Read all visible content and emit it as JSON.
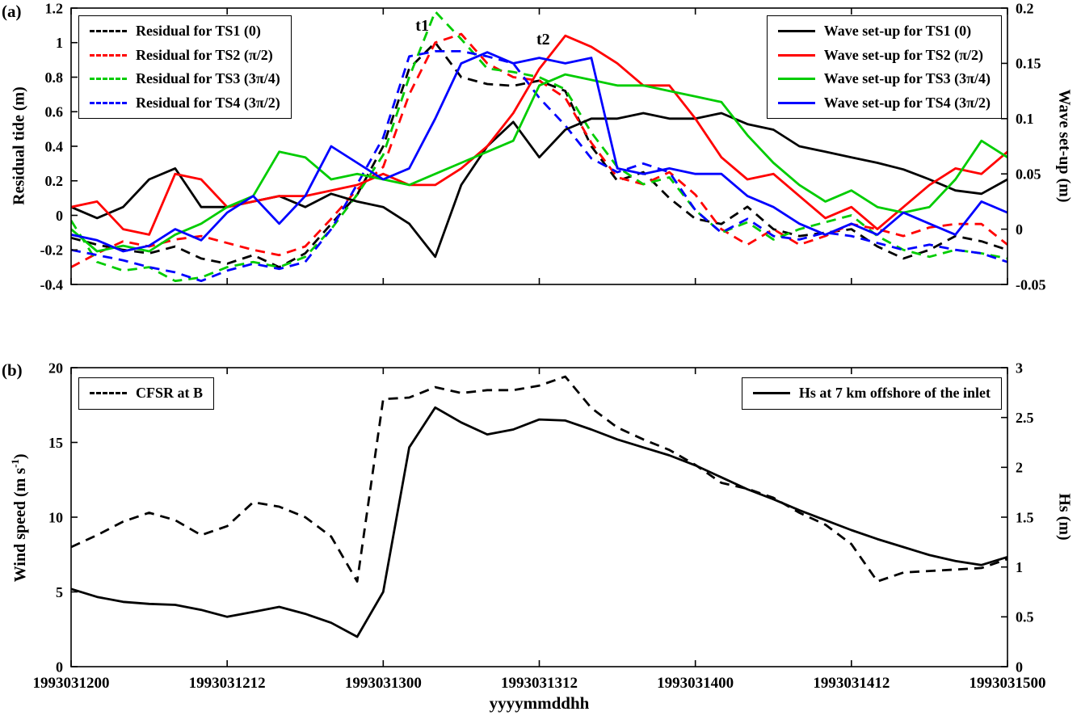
{
  "figure": {
    "panel_a_label": "(a)",
    "panel_b_label": "(b)",
    "xlabel": "yyyymmddhh"
  },
  "display": {
    "wind_label_pre": "Wind speed (m s",
    "wind_label_sup": "-1",
    "wind_label_post": ")"
  },
  "colors": {
    "black": "#000000",
    "red": "#ff0000",
    "green": "#00cc00",
    "blue": "#0000ff"
  },
  "chart_data": [
    {
      "type": "line",
      "panel": "a",
      "ylabel_left": "Residual tide (m)",
      "ylabel_right": "Wave set-up (m)",
      "ylim_left": [
        -0.4,
        1.2
      ],
      "ylim_right": [
        -0.05,
        0.2
      ],
      "yticks_left": {
        "values": [
          1.2,
          1,
          0.8,
          0.6,
          0.4,
          0.2,
          0,
          -0.2,
          -0.4
        ],
        "labels": [
          "1.2",
          "1",
          "0.8",
          "0.6",
          "0.4",
          "0.2",
          "0",
          "-0.2",
          "-0.4"
        ]
      },
      "yticks_right": {
        "values": [
          0.2,
          0.15,
          0.1,
          0.05,
          0,
          -0.05
        ],
        "labels": [
          "0.2",
          "0.15",
          "0.1",
          "0.05",
          "0",
          "-0.05"
        ]
      },
      "xlim_hours": [
        0,
        72
      ],
      "x_start": "1993031200",
      "x_hours": [
        0,
        2,
        4,
        6,
        8,
        10,
        12,
        14,
        16,
        18,
        20,
        22,
        24,
        26,
        28,
        30,
        32,
        34,
        36,
        38,
        40,
        42,
        44,
        46,
        48,
        50,
        52,
        54,
        56,
        58,
        60,
        62,
        64,
        66,
        68,
        70,
        72
      ],
      "xticks": {
        "hours": [
          0,
          12,
          24,
          36,
          48,
          60,
          72
        ],
        "labels": []
      },
      "series": [
        {
          "name": "Residual for TS1 (0)",
          "axis": "left",
          "color": "#000000",
          "style": "dashed",
          "values": [
            -0.13,
            -0.17,
            -0.2,
            -0.22,
            -0.18,
            -0.25,
            -0.28,
            -0.23,
            -0.3,
            -0.22,
            -0.05,
            0.12,
            0.4,
            0.85,
            1.0,
            0.8,
            0.76,
            0.75,
            0.78,
            0.72,
            0.4,
            0.2,
            0.25,
            0.1,
            -0.02,
            -0.05,
            0.05,
            -0.08,
            -0.12,
            -0.1,
            -0.08,
            -0.18,
            -0.25,
            -0.2,
            -0.12,
            -0.15,
            -0.2
          ]
        },
        {
          "name": "Residual for TS2 (π/2)",
          "axis": "left",
          "color": "#ff0000",
          "style": "dashed",
          "values": [
            -0.3,
            -0.22,
            -0.15,
            -0.18,
            -0.14,
            -0.12,
            -0.16,
            -0.2,
            -0.23,
            -0.18,
            -0.02,
            0.15,
            0.28,
            0.7,
            1.0,
            1.05,
            0.88,
            0.8,
            0.78,
            0.68,
            0.42,
            0.22,
            0.18,
            0.25,
            0.12,
            -0.08,
            -0.17,
            -0.08,
            -0.17,
            -0.12,
            -0.05,
            -0.08,
            -0.12,
            -0.07,
            -0.05,
            -0.05,
            -0.17
          ]
        },
        {
          "name": "Residual for TS3 (3π/4)",
          "axis": "left",
          "color": "#00cc00",
          "style": "dashed",
          "values": [
            -0.03,
            -0.27,
            -0.32,
            -0.3,
            -0.38,
            -0.36,
            -0.3,
            -0.27,
            -0.3,
            -0.24,
            -0.08,
            0.12,
            0.35,
            0.8,
            1.18,
            1.02,
            0.85,
            0.83,
            0.8,
            0.73,
            0.48,
            0.28,
            0.18,
            0.22,
            0.03,
            -0.1,
            -0.04,
            -0.14,
            -0.08,
            -0.04,
            0.0,
            -0.12,
            -0.2,
            -0.24,
            -0.2,
            -0.22,
            -0.25
          ]
        },
        {
          "name": "Residual for TS4 (3π/2)",
          "axis": "left",
          "color": "#0000ff",
          "style": "dashed",
          "values": [
            -0.2,
            -0.23,
            -0.26,
            -0.3,
            -0.33,
            -0.38,
            -0.32,
            -0.28,
            -0.31,
            -0.27,
            -0.08,
            0.18,
            0.45,
            0.92,
            0.95,
            0.95,
            0.92,
            0.88,
            0.68,
            0.52,
            0.33,
            0.25,
            0.3,
            0.25,
            0.03,
            -0.1,
            -0.02,
            -0.12,
            -0.14,
            -0.1,
            -0.12,
            -0.16,
            -0.2,
            -0.17,
            -0.2,
            -0.22,
            -0.27
          ]
        },
        {
          "name": "Wave set-up for TS1 (0)",
          "axis": "right",
          "color": "#000000",
          "style": "solid",
          "values": [
            0.02,
            0.01,
            0.02,
            0.045,
            0.055,
            0.02,
            0.02,
            0.025,
            0.03,
            0.02,
            0.032,
            0.025,
            0.02,
            0.005,
            -0.025,
            0.04,
            0.075,
            0.097,
            0.065,
            0.09,
            0.1,
            0.1,
            0.105,
            0.1,
            0.1,
            0.105,
            0.095,
            0.09,
            0.075,
            0.07,
            0.065,
            0.06,
            0.054,
            0.045,
            0.035,
            0.032,
            0.045
          ]
        },
        {
          "name": "Wave set-up for TS2 (π/2)",
          "axis": "right",
          "color": "#ff0000",
          "style": "solid",
          "values": [
            0.02,
            0.025,
            0.0,
            -0.005,
            0.05,
            0.045,
            0.02,
            0.025,
            0.03,
            0.03,
            0.035,
            0.04,
            0.05,
            0.04,
            0.04,
            0.055,
            0.075,
            0.105,
            0.145,
            0.175,
            0.165,
            0.15,
            0.13,
            0.13,
            0.1,
            0.065,
            0.045,
            0.05,
            0.03,
            0.01,
            0.02,
            0.0,
            0.02,
            0.04,
            0.055,
            0.05,
            0.07
          ]
        },
        {
          "name": "Wave set-up for TS3 (3π/4)",
          "axis": "right",
          "color": "#00cc00",
          "style": "solid",
          "values": [
            0.0,
            -0.02,
            -0.015,
            -0.02,
            -0.005,
            0.005,
            0.02,
            0.03,
            0.07,
            0.065,
            0.045,
            0.05,
            0.045,
            0.04,
            0.05,
            0.06,
            0.07,
            0.08,
            0.13,
            0.14,
            0.135,
            0.13,
            0.13,
            0.125,
            0.12,
            0.115,
            0.085,
            0.06,
            0.04,
            0.025,
            0.035,
            0.02,
            0.015,
            0.02,
            0.045,
            0.08,
            0.065
          ]
        },
        {
          "name": "Wave set-up for TS4 (3π/2)",
          "axis": "right",
          "color": "#0000ff",
          "style": "solid",
          "values": [
            -0.005,
            -0.01,
            -0.02,
            -0.015,
            0.0,
            -0.01,
            0.015,
            0.03,
            0.005,
            0.03,
            0.075,
            0.06,
            0.045,
            0.055,
            0.1,
            0.15,
            0.16,
            0.15,
            0.155,
            0.15,
            0.155,
            0.055,
            0.05,
            0.055,
            0.05,
            0.05,
            0.03,
            0.02,
            0.005,
            -0.005,
            0.005,
            -0.005,
            0.015,
            0.005,
            -0.005,
            0.025,
            0.015
          ]
        }
      ],
      "annotations": [
        {
          "text": "t1",
          "hour": 27.0,
          "value_left": 1.07
        },
        {
          "text": "t2",
          "hour": 36.3,
          "value_left": 0.99
        }
      ]
    },
    {
      "type": "line",
      "panel": "b",
      "ylabel_left": "Wind speed (m s⁻¹)",
      "ylabel_right": "Hs (m)",
      "ylim_left": [
        0,
        20
      ],
      "ylim_right": [
        0,
        3
      ],
      "yticks_left": {
        "values": [
          0,
          5,
          10,
          15,
          20
        ],
        "labels": [
          "0",
          "5",
          "10",
          "15",
          "20"
        ]
      },
      "yticks_right": {
        "values": [
          0,
          0.5,
          1,
          1.5,
          2,
          2.5,
          3
        ],
        "labels": [
          "0",
          "0.5",
          "1",
          "1.5",
          "2",
          "2.5",
          "3"
        ]
      },
      "xlim_hours": [
        0,
        72
      ],
      "x_hours": [
        0,
        2,
        4,
        6,
        8,
        10,
        12,
        14,
        16,
        18,
        20,
        22,
        24,
        26,
        28,
        30,
        32,
        34,
        36,
        38,
        40,
        42,
        44,
        46,
        48,
        50,
        52,
        54,
        56,
        58,
        60,
        62,
        64,
        66,
        68,
        70,
        72
      ],
      "xticks": {
        "hours": [
          0,
          12,
          24,
          36,
          48,
          60,
          72
        ],
        "labels": [
          "1993031200",
          "1993031212",
          "1993031300",
          "1993031312",
          "1993031400",
          "1993031412",
          "1993031500"
        ]
      },
      "series": [
        {
          "name": "CFSR at B",
          "axis": "left",
          "color": "#000000",
          "style": "dashed",
          "values": [
            8.0,
            8.8,
            9.7,
            10.3,
            9.8,
            8.8,
            9.4,
            11.0,
            10.7,
            10.0,
            8.7,
            5.7,
            17.9,
            18.0,
            18.7,
            18.3,
            18.5,
            18.5,
            18.8,
            19.4,
            17.3,
            16.0,
            15.2,
            14.5,
            13.5,
            12.3,
            11.9,
            11.3,
            10.3,
            9.5,
            8.2,
            5.7,
            6.3,
            6.4,
            6.5,
            6.6,
            7.2
          ]
        },
        {
          "name": "Hs at 7 km offshore of the inlet",
          "axis": "right",
          "color": "#000000",
          "style": "solid",
          "values": [
            0.78,
            0.7,
            0.65,
            0.63,
            0.62,
            0.57,
            0.5,
            0.55,
            0.6,
            0.53,
            0.44,
            0.3,
            0.75,
            2.2,
            2.6,
            2.45,
            2.33,
            2.38,
            2.48,
            2.47,
            2.38,
            2.28,
            2.2,
            2.12,
            2.02,
            1.9,
            1.78,
            1.68,
            1.57,
            1.47,
            1.37,
            1.28,
            1.2,
            1.12,
            1.06,
            1.02,
            1.1
          ]
        }
      ],
      "annotations": []
    }
  ],
  "legends": [
    {
      "panel": "a",
      "side": "left",
      "series": [
        0,
        1,
        2,
        3
      ]
    },
    {
      "panel": "a",
      "side": "right",
      "series": [
        4,
        5,
        6,
        7
      ]
    },
    {
      "panel": "b",
      "side": "left",
      "series": [
        0
      ]
    },
    {
      "panel": "b",
      "side": "right",
      "series": [
        1
      ]
    }
  ]
}
